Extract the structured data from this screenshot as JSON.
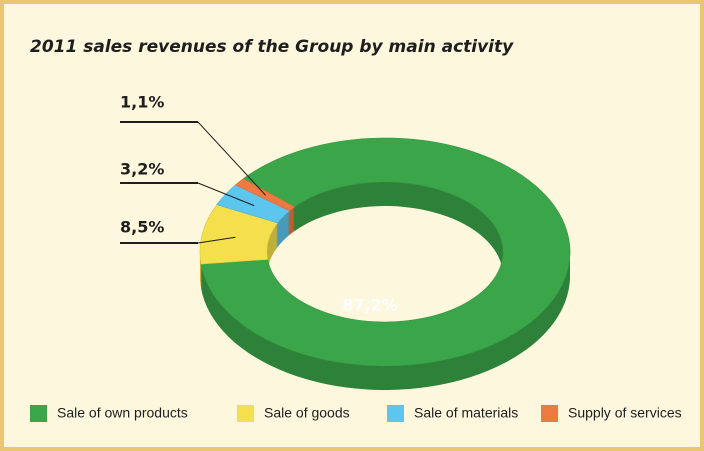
{
  "chart_data": {
    "type": "donut",
    "title": "2011 sales revenues of the Group by main activity",
    "categories": [
      "Sale of own products",
      "Sale of goods",
      "Sale of materials",
      "Supply of services"
    ],
    "values": [
      87.2,
      8.5,
      3.2,
      1.1
    ],
    "value_labels": [
      "87,2%",
      "8,5%",
      "3,2%",
      "1,1%"
    ],
    "colors": [
      "#3ba549",
      "#f4df4c",
      "#5cc6ee",
      "#ef7a41"
    ],
    "legend": "bottom"
  }
}
